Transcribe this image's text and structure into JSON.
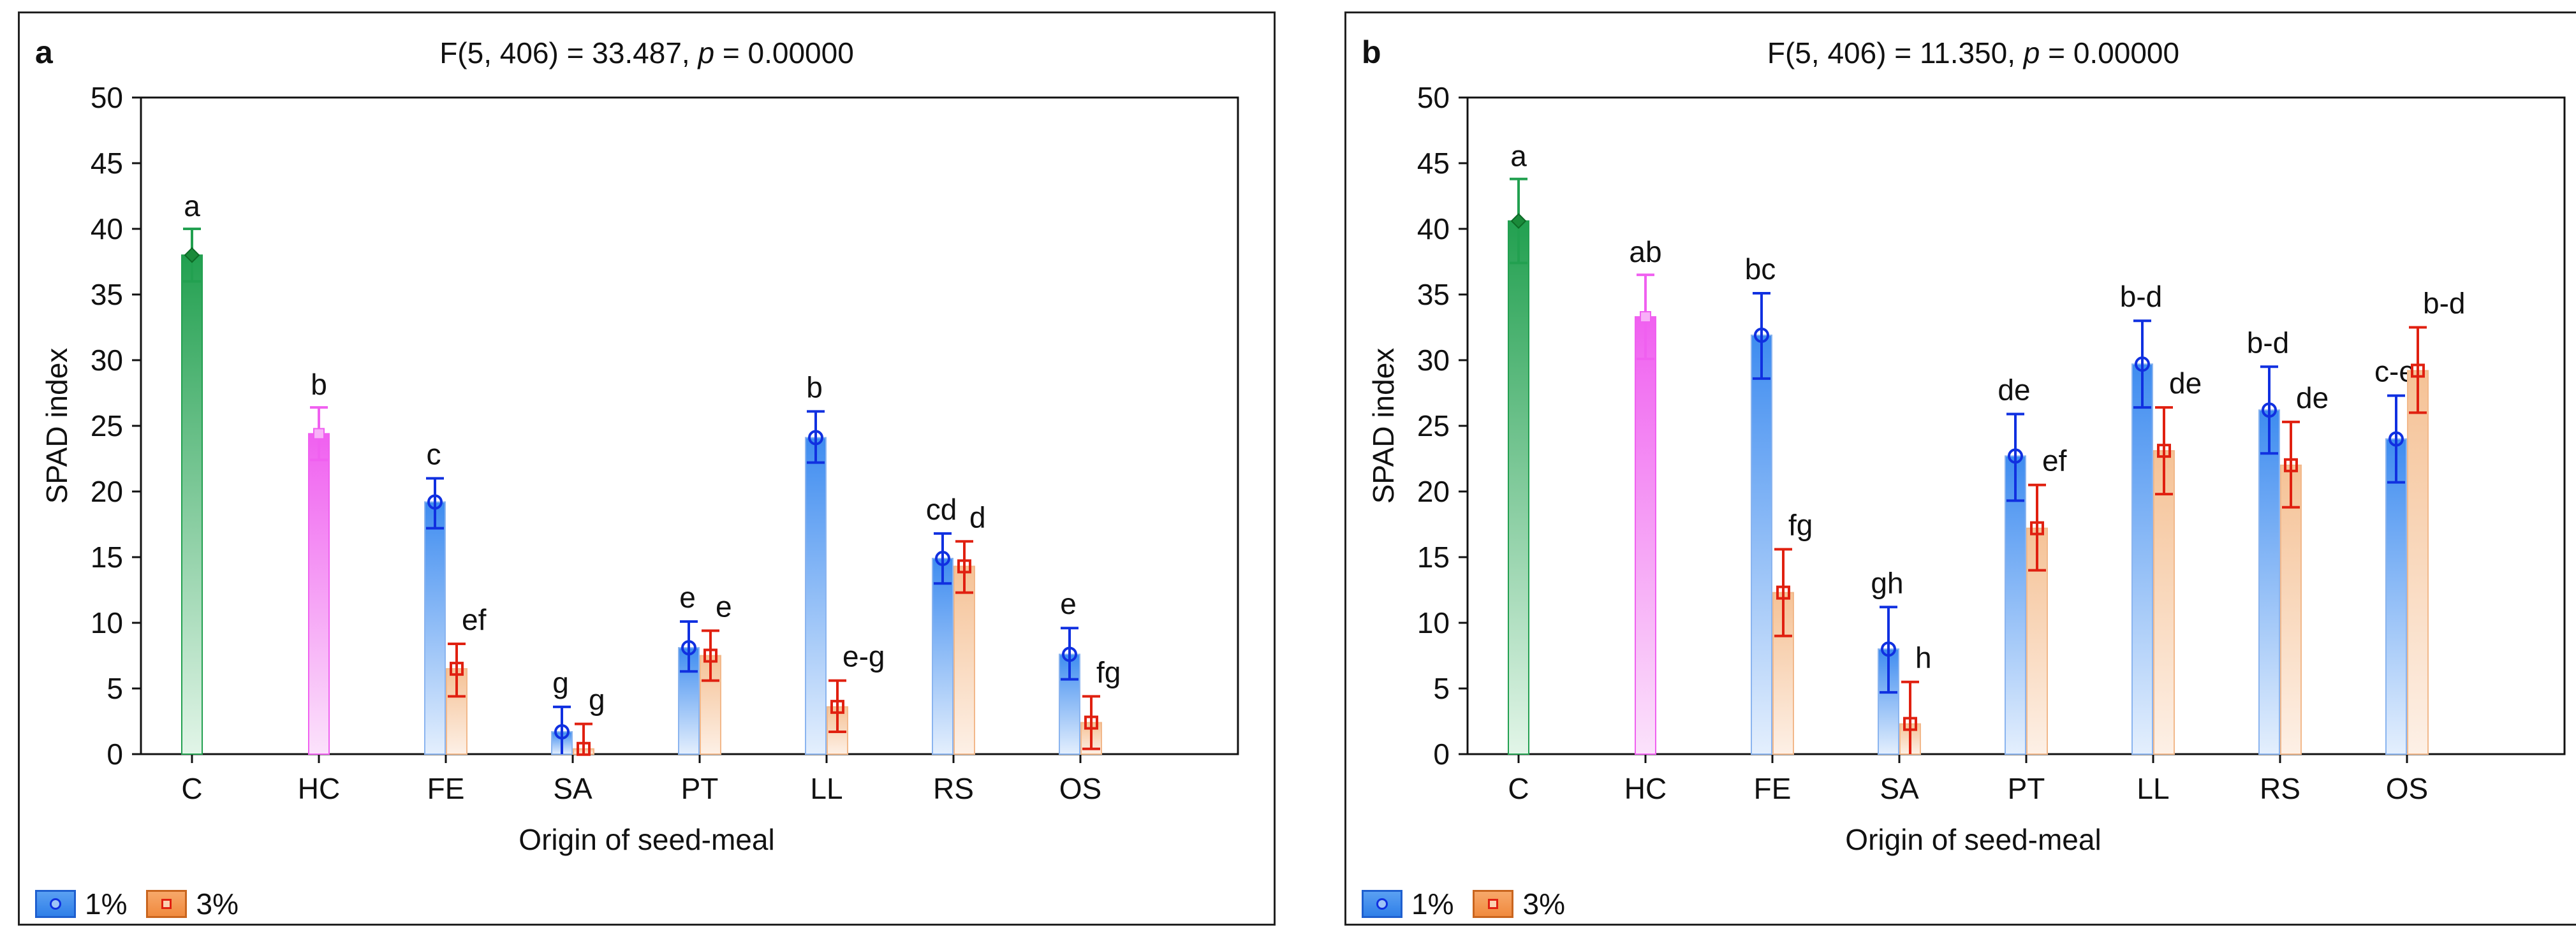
{
  "chart_data": [
    {
      "type": "bar",
      "panel_label": "a",
      "title_prefix": "F(5, 406) = 33.487, ",
      "title_p": "p",
      "title_suffix": " = 0.00000",
      "xlabel": "Origin of seed-meal",
      "ylabel": "SPAD index",
      "ylim": [
        0,
        50
      ],
      "yticks": [
        0,
        5,
        10,
        15,
        20,
        25,
        30,
        35,
        40,
        45,
        50
      ],
      "categories": [
        "C",
        "HC",
        "FE",
        "SA",
        "PT",
        "LL",
        "RS",
        "OS"
      ],
      "series": [
        {
          "name": "1%",
          "values": [
            null,
            null,
            19.2,
            1.7,
            8.1,
            24.1,
            14.9,
            7.6
          ],
          "err_low": [
            null,
            null,
            17.2,
            0.0,
            6.3,
            22.2,
            13.0,
            5.7
          ],
          "err_high": [
            null,
            null,
            21.0,
            3.6,
            10.1,
            26.1,
            16.8,
            9.6
          ],
          "letters": [
            "",
            "",
            "c",
            "g",
            "e",
            "b",
            "cd",
            "e"
          ]
        },
        {
          "name": "3%",
          "values": [
            null,
            null,
            6.5,
            0.4,
            7.5,
            3.6,
            14.3,
            2.4
          ],
          "err_low": [
            null,
            null,
            4.4,
            0.0,
            5.6,
            1.7,
            12.3,
            0.4
          ],
          "err_high": [
            null,
            null,
            8.4,
            2.3,
            9.4,
            5.6,
            16.2,
            4.4
          ],
          "letters": [
            "",
            "",
            "ef",
            "g",
            "e",
            "e-g",
            "d",
            "fg"
          ]
        }
      ],
      "controls": [
        {
          "category": "C",
          "value": 38.0,
          "err_low": 36.0,
          "err_high": 40.0,
          "letter": "a",
          "color": "#22a050"
        },
        {
          "category": "HC",
          "value": 24.4,
          "err_low": 22.4,
          "err_high": 26.4,
          "letter": "b",
          "color": "#f060f0"
        }
      ]
    },
    {
      "type": "bar",
      "panel_label": "b",
      "title_prefix": "F(5, 406) = 11.350, ",
      "title_p": "p",
      "title_suffix": " = 0.00000",
      "xlabel": "Origin of seed-meal",
      "ylabel": "SPAD index",
      "ylim": [
        0,
        50
      ],
      "yticks": [
        0,
        5,
        10,
        15,
        20,
        25,
        30,
        35,
        40,
        45,
        50
      ],
      "categories": [
        "C",
        "HC",
        "FE",
        "SA",
        "PT",
        "LL",
        "RS",
        "OS"
      ],
      "series": [
        {
          "name": "1%",
          "values": [
            null,
            null,
            31.9,
            8.0,
            22.7,
            29.7,
            26.2,
            24.0
          ],
          "err_low": [
            null,
            null,
            28.6,
            4.7,
            19.3,
            26.4,
            22.9,
            20.7
          ],
          "err_high": [
            null,
            null,
            35.1,
            11.2,
            25.9,
            33.0,
            29.5,
            27.3
          ],
          "letters": [
            "",
            "",
            "bc",
            "gh",
            "de",
            "b-d",
            "b-d",
            "c-e"
          ]
        },
        {
          "name": "3%",
          "values": [
            null,
            null,
            12.3,
            2.3,
            17.2,
            23.1,
            22.0,
            29.2
          ],
          "err_low": [
            null,
            null,
            9.0,
            0.0,
            14.0,
            19.8,
            18.8,
            26.0
          ],
          "err_high": [
            null,
            null,
            15.6,
            5.5,
            20.5,
            26.4,
            25.3,
            32.5
          ],
          "letters": [
            "",
            "",
            "fg",
            "h",
            "ef",
            "de",
            "de",
            "b-d"
          ]
        }
      ],
      "controls": [
        {
          "category": "C",
          "value": 40.6,
          "err_low": 37.4,
          "err_high": 43.8,
          "letter": "a",
          "color": "#22a050"
        },
        {
          "category": "HC",
          "value": 33.3,
          "err_low": 30.1,
          "err_high": 36.5,
          "letter": "ab",
          "color": "#f060f0"
        }
      ]
    }
  ],
  "legend": {
    "items": [
      {
        "label": "1%"
      },
      {
        "label": "3%"
      }
    ]
  },
  "colors": {
    "series1": "#2f7fe8",
    "series1_marker": "#1030e0",
    "series2": "#f08a3e",
    "series2_marker": "#e02010"
  }
}
